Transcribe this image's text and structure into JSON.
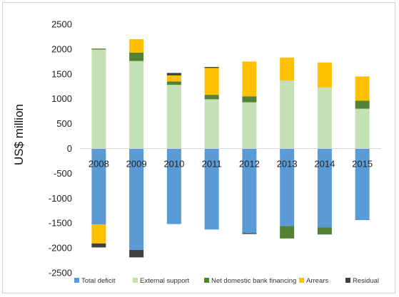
{
  "chart_data": {
    "type": "bar",
    "stacked": true,
    "ylabel": "US$ million",
    "ylim": [
      -2500,
      2500
    ],
    "yticks": [
      2500,
      2000,
      1500,
      1000,
      500,
      0,
      -500,
      -1000,
      -1500,
      -2000,
      -2500
    ],
    "ytick_labels": [
      "2500",
      "2000",
      "1500",
      "1000",
      "500",
      "0",
      "-500",
      "-1000",
      "-1500",
      "-2000",
      "-2500"
    ],
    "categories": [
      "2008",
      "2009",
      "2010",
      "2011",
      "2012",
      "2013",
      "2014",
      "2015"
    ],
    "grid": false,
    "legend_position": "bottom",
    "series": [
      {
        "name": "Total deficit",
        "color": "#5b9bd5",
        "values": [
          -1530,
          -2040,
          -1520,
          -1630,
          -1700,
          -1560,
          -1590,
          -1440
        ]
      },
      {
        "name": "External support",
        "color": "#c5e0b4",
        "values": [
          1990,
          1760,
          1280,
          990,
          930,
          1370,
          1230,
          800
        ]
      },
      {
        "name": "Net domestic bank financing",
        "color": "#548235",
        "values": [
          20,
          170,
          70,
          90,
          120,
          -250,
          -140,
          160
        ]
      },
      {
        "name": "Arrears",
        "color": "#ffc000",
        "values": [
          -380,
          270,
          120,
          540,
          700,
          460,
          500,
          490
        ]
      },
      {
        "name": "Residual",
        "color": "#404040",
        "values": [
          -80,
          -150,
          50,
          20,
          -20,
          0,
          0,
          0
        ]
      }
    ]
  }
}
